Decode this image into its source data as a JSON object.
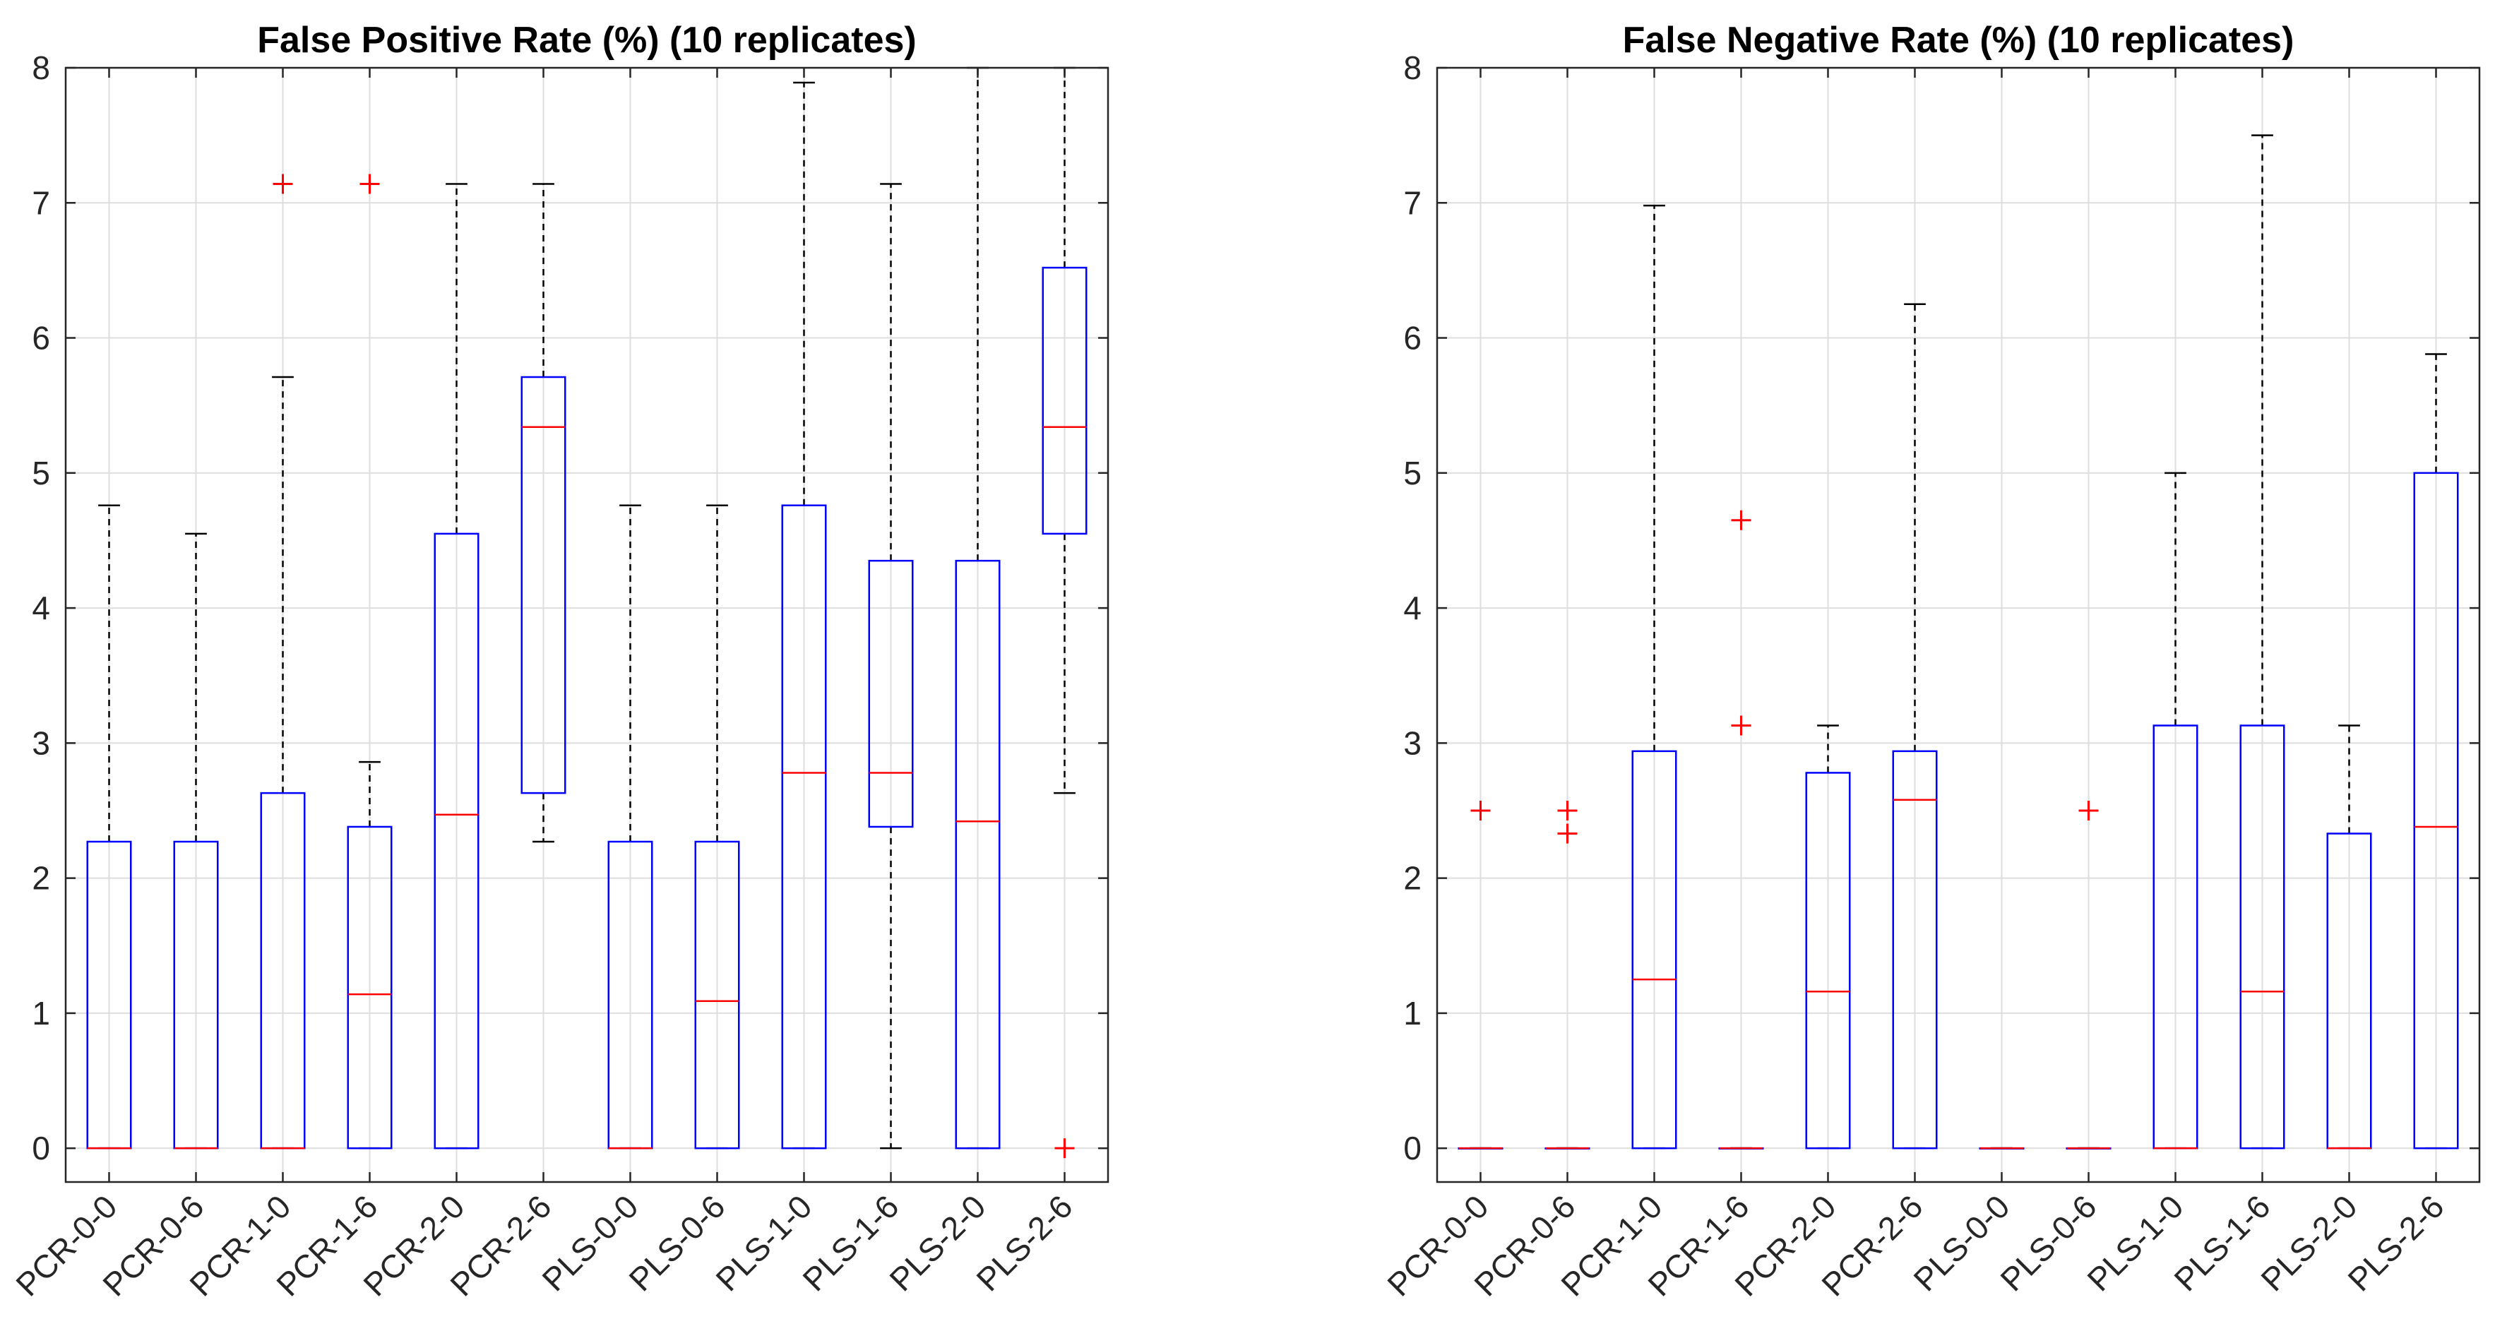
{
  "chart_data": [
    {
      "type": "box",
      "title": "False Positive Rate (%) (10 replicates)",
      "xlabel": "",
      "ylabel": "",
      "ylim": [
        -0.25,
        8
      ],
      "yticks": [
        0,
        1,
        2,
        3,
        4,
        5,
        6,
        7,
        8
      ],
      "grid": true,
      "categories": [
        "PCR-0-0",
        "PCR-0-6",
        "PCR-1-0",
        "PCR-1-6",
        "PCR-2-0",
        "PCR-2-6",
        "PLS-0-0",
        "PLS-0-6",
        "PLS-1-0",
        "PLS-1-6",
        "PLS-2-0",
        "PLS-2-6"
      ],
      "boxes": [
        {
          "q1": 0,
          "median": 0,
          "q3": 2.27,
          "whisker_low": 0,
          "whisker_high": 4.76,
          "outliers": []
        },
        {
          "q1": 0,
          "median": 0,
          "q3": 2.27,
          "whisker_low": 0,
          "whisker_high": 4.55,
          "outliers": []
        },
        {
          "q1": 0,
          "median": 0,
          "q3": 2.63,
          "whisker_low": 0,
          "whisker_high": 5.71,
          "outliers": [
            7.14
          ]
        },
        {
          "q1": 0,
          "median": 1.14,
          "q3": 2.38,
          "whisker_low": 0,
          "whisker_high": 2.86,
          "outliers": [
            7.14
          ]
        },
        {
          "q1": 0,
          "median": 2.47,
          "q3": 4.55,
          "whisker_low": 0,
          "whisker_high": 7.14,
          "outliers": []
        },
        {
          "q1": 2.63,
          "median": 5.34,
          "q3": 5.71,
          "whisker_low": 2.27,
          "whisker_high": 7.14,
          "outliers": []
        },
        {
          "q1": 0,
          "median": 0,
          "q3": 2.27,
          "whisker_low": 0,
          "whisker_high": 4.76,
          "outliers": []
        },
        {
          "q1": 0,
          "median": 1.09,
          "q3": 2.27,
          "whisker_low": 0,
          "whisker_high": 4.76,
          "outliers": []
        },
        {
          "q1": 0,
          "median": 2.78,
          "q3": 4.76,
          "whisker_low": 0,
          "whisker_high": 7.89,
          "outliers": []
        },
        {
          "q1": 2.38,
          "median": 2.78,
          "q3": 4.35,
          "whisker_low": 0,
          "whisker_high": 7.14,
          "outliers": []
        },
        {
          "q1": 0,
          "median": 2.42,
          "q3": 4.35,
          "whisker_low": 0,
          "whisker_high": 8.0,
          "outliers": []
        },
        {
          "q1": 4.55,
          "median": 5.34,
          "q3": 6.52,
          "whisker_low": 2.63,
          "whisker_high": 8.0,
          "outliers": [
            0
          ]
        }
      ],
      "colors": {
        "box": "#0000ff",
        "median": "#ff0000",
        "outlier": "#ff0000",
        "whisker": "#000000",
        "grid": "#dedede",
        "frame": "#262626"
      }
    },
    {
      "type": "box",
      "title": "False Negative Rate (%) (10 replicates)",
      "xlabel": "",
      "ylabel": "",
      "ylim": [
        -0.25,
        8
      ],
      "yticks": [
        0,
        1,
        2,
        3,
        4,
        5,
        6,
        7,
        8
      ],
      "grid": true,
      "categories": [
        "PCR-0-0",
        "PCR-0-6",
        "PCR-1-0",
        "PCR-1-6",
        "PCR-2-0",
        "PCR-2-6",
        "PLS-0-0",
        "PLS-0-6",
        "PLS-1-0",
        "PLS-1-6",
        "PLS-2-0",
        "PLS-2-6"
      ],
      "boxes": [
        {
          "q1": 0,
          "median": 0,
          "q3": 0,
          "whisker_low": 0,
          "whisker_high": 0,
          "outliers": [
            2.5
          ]
        },
        {
          "q1": 0,
          "median": 0,
          "q3": 0,
          "whisker_low": 0,
          "whisker_high": 0,
          "outliers": [
            2.5,
            2.33
          ]
        },
        {
          "q1": 0,
          "median": 1.25,
          "q3": 2.94,
          "whisker_low": 0,
          "whisker_high": 6.98,
          "outliers": []
        },
        {
          "q1": 0,
          "median": 0,
          "q3": 0,
          "whisker_low": 0,
          "whisker_high": 0,
          "outliers": [
            4.65,
            3.13
          ]
        },
        {
          "q1": 0,
          "median": 1.16,
          "q3": 2.78,
          "whisker_low": 0,
          "whisker_high": 3.13,
          "outliers": []
        },
        {
          "q1": 0,
          "median": 2.58,
          "q3": 2.94,
          "whisker_low": 0,
          "whisker_high": 6.25,
          "outliers": []
        },
        {
          "q1": 0,
          "median": 0,
          "q3": 0,
          "whisker_low": 0,
          "whisker_high": 0,
          "outliers": []
        },
        {
          "q1": 0,
          "median": 0,
          "q3": 0,
          "whisker_low": 0,
          "whisker_high": 0,
          "outliers": [
            2.5
          ]
        },
        {
          "q1": 0,
          "median": 0,
          "q3": 3.13,
          "whisker_low": 0,
          "whisker_high": 5.0,
          "outliers": []
        },
        {
          "q1": 0,
          "median": 1.16,
          "q3": 3.13,
          "whisker_low": 0,
          "whisker_high": 7.5,
          "outliers": []
        },
        {
          "q1": 0,
          "median": 0,
          "q3": 2.33,
          "whisker_low": 0,
          "whisker_high": 3.13,
          "outliers": []
        },
        {
          "q1": 0,
          "median": 2.38,
          "q3": 5.0,
          "whisker_low": 0,
          "whisker_high": 5.88,
          "outliers": []
        }
      ],
      "colors": {
        "box": "#0000ff",
        "median": "#ff0000",
        "outlier": "#ff0000",
        "whisker": "#000000",
        "grid": "#dedede",
        "frame": "#262626"
      }
    }
  ]
}
